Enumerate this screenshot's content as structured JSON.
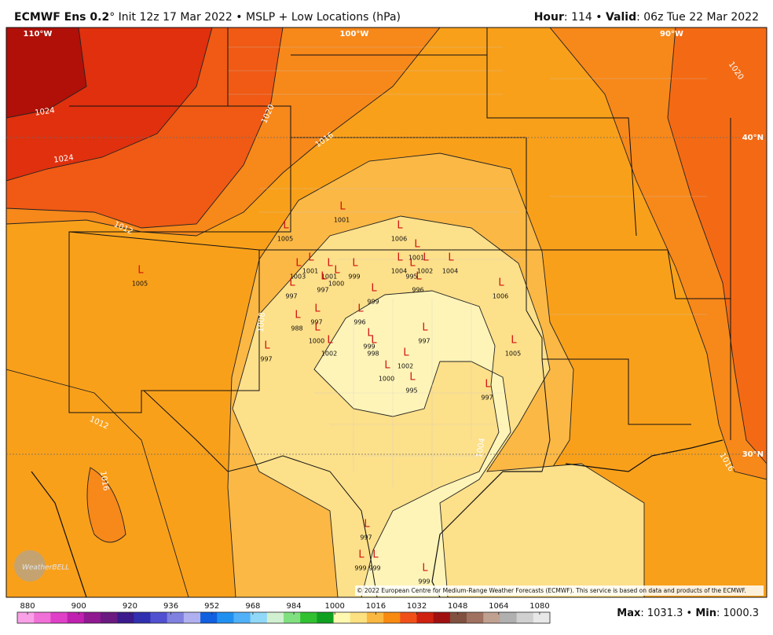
{
  "header": {
    "title_bold": "ECMWF Ens 0.2",
    "title_rest": "° Init 12z 17 Mar 2022 • MSLP + Low Locations (hPa)",
    "hour_label": "Hour",
    "hour_value": ": 114 • ",
    "valid_label": "Valid",
    "valid_value": ": 06z Tue 22 Mar 2022"
  },
  "map": {
    "coordinate_labels": [
      "110°W",
      "100°W",
      "90°W",
      "40°N",
      "30°N"
    ],
    "isobar_labels": [
      "1024",
      "1024",
      "1020",
      "1016",
      "1012",
      "1008",
      "1012",
      "1016",
      "1004",
      "1020",
      "1016"
    ],
    "low_symbol": "L",
    "lows": [
      1001,
      1005,
      1005,
      1006,
      1001,
      1004,
      1002,
      1004,
      995,
      996,
      1006,
      1003,
      1001,
      1001,
      1000,
      999,
      997,
      997,
      999,
      988,
      997,
      996,
      1000,
      999,
      998,
      1002,
      997,
      997,
      1002,
      1000,
      995,
      1005,
      997,
      997,
      999,
      999,
      999
    ],
    "watermark": "WeatherBELL",
    "copyright": "© 2022 European Centre for Medium-Range Weather Forecasts (ECMWF). This service is based on data and products of the ECMWF."
  },
  "colorbar": {
    "lim": [
      876,
      1084
    ],
    "ticks": [
      880,
      900,
      920,
      936,
      952,
      968,
      984,
      1000,
      1016,
      1032,
      1048,
      1064,
      1080
    ],
    "colors": [
      "#f9a0e6",
      "#f070d8",
      "#e040c8",
      "#c020b0",
      "#901890",
      "#6a1a80",
      "#3a1a8c",
      "#3030b0",
      "#5050d0",
      "#8080e0",
      "#b0b0f0",
      "#1060e0",
      "#2090f0",
      "#50b0f8",
      "#90d8f8",
      "#d0f0d0",
      "#80e080",
      "#30c030",
      "#10a020",
      "#fff8b0",
      "#fde080",
      "#fbb840",
      "#f88a10",
      "#f05018",
      "#d02010",
      "#a01010",
      "#805040",
      "#a07060",
      "#c0a090",
      "#b0b0b0",
      "#d0d0d0",
      "#e8e8e8"
    ]
  },
  "footer": {
    "max_label": "Max",
    "max_sep": ": ",
    "max": 1031.3,
    "between": " • ",
    "min_label": "Min",
    "min_sep": ": ",
    "min": 1000.3
  }
}
